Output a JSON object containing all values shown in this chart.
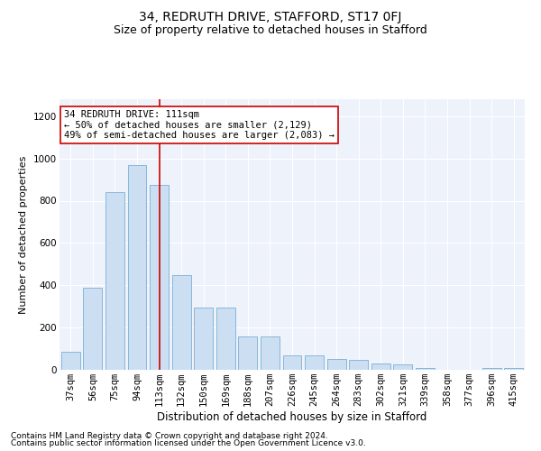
{
  "title": "34, REDRUTH DRIVE, STAFFORD, ST17 0FJ",
  "subtitle": "Size of property relative to detached houses in Stafford",
  "xlabel": "Distribution of detached houses by size in Stafford",
  "ylabel": "Number of detached properties",
  "footnote1": "Contains HM Land Registry data © Crown copyright and database right 2024.",
  "footnote2": "Contains public sector information licensed under the Open Government Licence v3.0.",
  "annotation_line1": "34 REDRUTH DRIVE: 111sqm",
  "annotation_line2": "← 50% of detached houses are smaller (2,129)",
  "annotation_line3": "49% of semi-detached houses are larger (2,083) →",
  "categories": [
    "37sqm",
    "56sqm",
    "75sqm",
    "94sqm",
    "113sqm",
    "132sqm",
    "150sqm",
    "169sqm",
    "188sqm",
    "207sqm",
    "226sqm",
    "245sqm",
    "264sqm",
    "283sqm",
    "302sqm",
    "321sqm",
    "339sqm",
    "358sqm",
    "377sqm",
    "396sqm",
    "415sqm"
  ],
  "values": [
    85,
    390,
    840,
    970,
    875,
    450,
    295,
    295,
    160,
    160,
    70,
    70,
    50,
    45,
    30,
    25,
    10,
    0,
    0,
    10,
    10
  ],
  "bar_color": "#ccdff2",
  "bar_edge_color": "#7bafd4",
  "vline_x_index": 4,
  "vline_color": "#cc0000",
  "annotation_box_color": "#cc0000",
  "background_color": "#eef2fb",
  "ylim": [
    0,
    1280
  ],
  "yticks": [
    0,
    200,
    400,
    600,
    800,
    1000,
    1200
  ],
  "title_fontsize": 10,
  "subtitle_fontsize": 9,
  "xlabel_fontsize": 8.5,
  "ylabel_fontsize": 8,
  "tick_fontsize": 7.5,
  "annotation_fontsize": 7.5,
  "footnote_fontsize": 6.5
}
